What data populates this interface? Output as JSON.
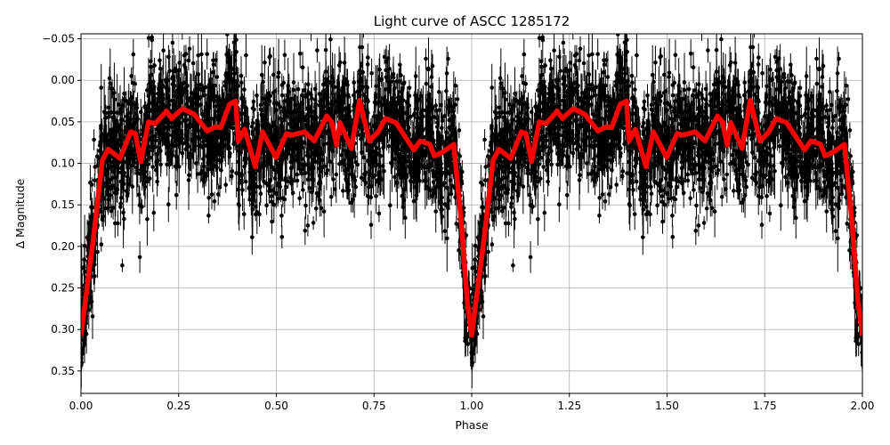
{
  "chart_data": {
    "type": "line",
    "title": "Light curve of ASCC 1285172",
    "xlabel": "Phase",
    "ylabel": "Δ Magnitude",
    "xlim": [
      0,
      2
    ],
    "ylim": [
      0.377,
      -0.056
    ],
    "y_inverted": true,
    "grid": true,
    "x_ticks": [
      "0.00",
      "0.25",
      "0.50",
      "0.75",
      "1.00",
      "1.25",
      "1.50",
      "1.75",
      "2.00"
    ],
    "y_ticks": [
      "−0.05",
      "0.00",
      "0.05",
      "0.10",
      "0.15",
      "0.20",
      "0.25",
      "0.30",
      "0.35"
    ],
    "colors": {
      "fit": "#ff0000",
      "data": "#000000",
      "grid": "#b0b0b0"
    },
    "observations": {
      "description_style": "black points with vertical error bars, phase-folded and repeated over two cycles",
      "scatter_std": 0.04
    },
    "fit_curve": {
      "phase": [
        0,
        0.032,
        0.055,
        0.07,
        0.1,
        0.127,
        0.139,
        0.153,
        0.173,
        0.19,
        0.219,
        0.232,
        0.26,
        0.29,
        0.323,
        0.344,
        0.358,
        0.38,
        0.396,
        0.403,
        0.419,
        0.446,
        0.465,
        0.499,
        0.526,
        0.54,
        0.572,
        0.597,
        0.629,
        0.642,
        0.654,
        0.663,
        0.692,
        0.713,
        0.738,
        0.761,
        0.779,
        0.806,
        0.852,
        0.868,
        0.893,
        0.904,
        0.927,
        0.954,
        0.973,
        0.989,
        1.0
      ],
      "dmag": [
        0.307,
        0.19,
        0.096,
        0.083,
        0.094,
        0.062,
        0.064,
        0.098,
        0.05,
        0.052,
        0.037,
        0.046,
        0.034,
        0.041,
        0.061,
        0.056,
        0.057,
        0.029,
        0.025,
        0.073,
        0.059,
        0.104,
        0.062,
        0.093,
        0.064,
        0.066,
        0.062,
        0.073,
        0.043,
        0.05,
        0.078,
        0.051,
        0.082,
        0.024,
        0.073,
        0.062,
        0.046,
        0.051,
        0.084,
        0.073,
        0.077,
        0.091,
        0.086,
        0.077,
        0.168,
        0.268,
        0.307
      ]
    }
  }
}
